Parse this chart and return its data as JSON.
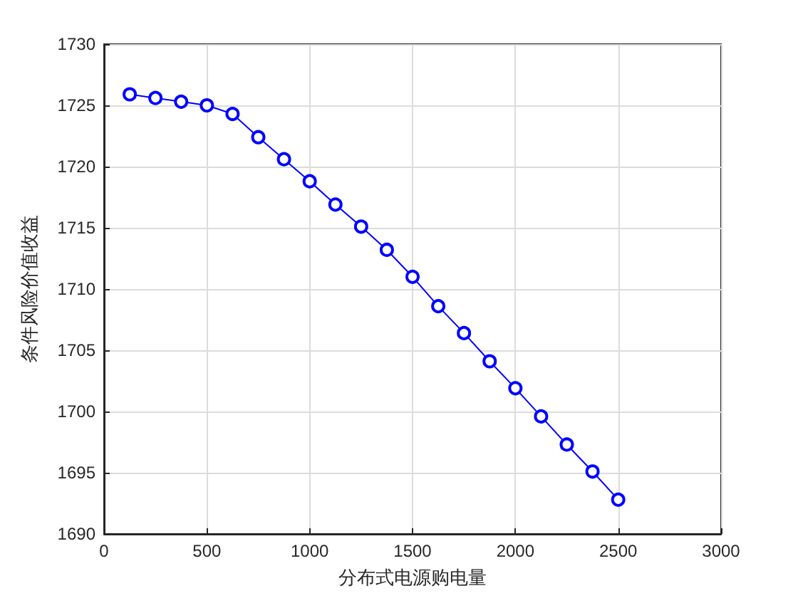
{
  "chart_data": {
    "type": "line",
    "xlabel": "分布式电源购电量",
    "ylabel": "条件风险价值收益",
    "x": [
      125,
      250,
      375,
      500,
      625,
      750,
      875,
      1000,
      1125,
      1250,
      1375,
      1500,
      1625,
      1750,
      1875,
      2000,
      2125,
      2250,
      2375,
      2500
    ],
    "values": [
      1725.9,
      1725.6,
      1725.3,
      1725.0,
      1724.3,
      1722.4,
      1720.6,
      1718.8,
      1716.9,
      1715.1,
      1713.2,
      1711.0,
      1708.6,
      1706.4,
      1704.1,
      1701.9,
      1699.6,
      1697.3,
      1695.1,
      1692.8
    ],
    "color": "#0000ff",
    "marker": "circle",
    "line_style": "solid",
    "grid": true,
    "xlim": [
      0,
      3000
    ],
    "xticks": [
      0,
      500,
      1000,
      1500,
      2000,
      2500,
      3000
    ],
    "ylim": [
      1690,
      1730
    ],
    "yticks": [
      1690,
      1695,
      1700,
      1705,
      1710,
      1715,
      1720,
      1725,
      1730
    ]
  }
}
